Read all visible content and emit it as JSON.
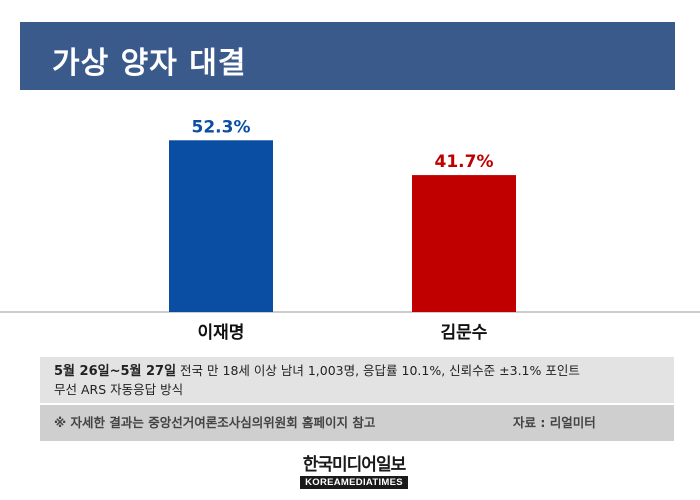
{
  "title": "가상 양자 대결",
  "chart_data": {
    "type": "bar",
    "categories": [
      "이재명",
      "김문수"
    ],
    "values": [
      52.3,
      41.7
    ],
    "value_labels": [
      "52.3%",
      "41.7%"
    ],
    "colors": [
      "#0a4ea3",
      "#c00000"
    ],
    "ylim": [
      0,
      60
    ],
    "grid": false
  },
  "info": {
    "date_range": "5월 26일~5월 27일",
    "details_line1": "전국 만 18세 이상 남녀 1,003명, 응답률 10.1%, 신뢰수준 ±3.1% 포인트",
    "details_line2": "무선 ARS 자동응답 방식",
    "note": "※ 자세한 결과는 중앙선거여론조사심의위원회 홈페이지 참고",
    "source": "자료 : 리얼미터"
  },
  "logo": {
    "korean": "한국미디어일보",
    "english": "KOREAMEDIATIMES"
  }
}
